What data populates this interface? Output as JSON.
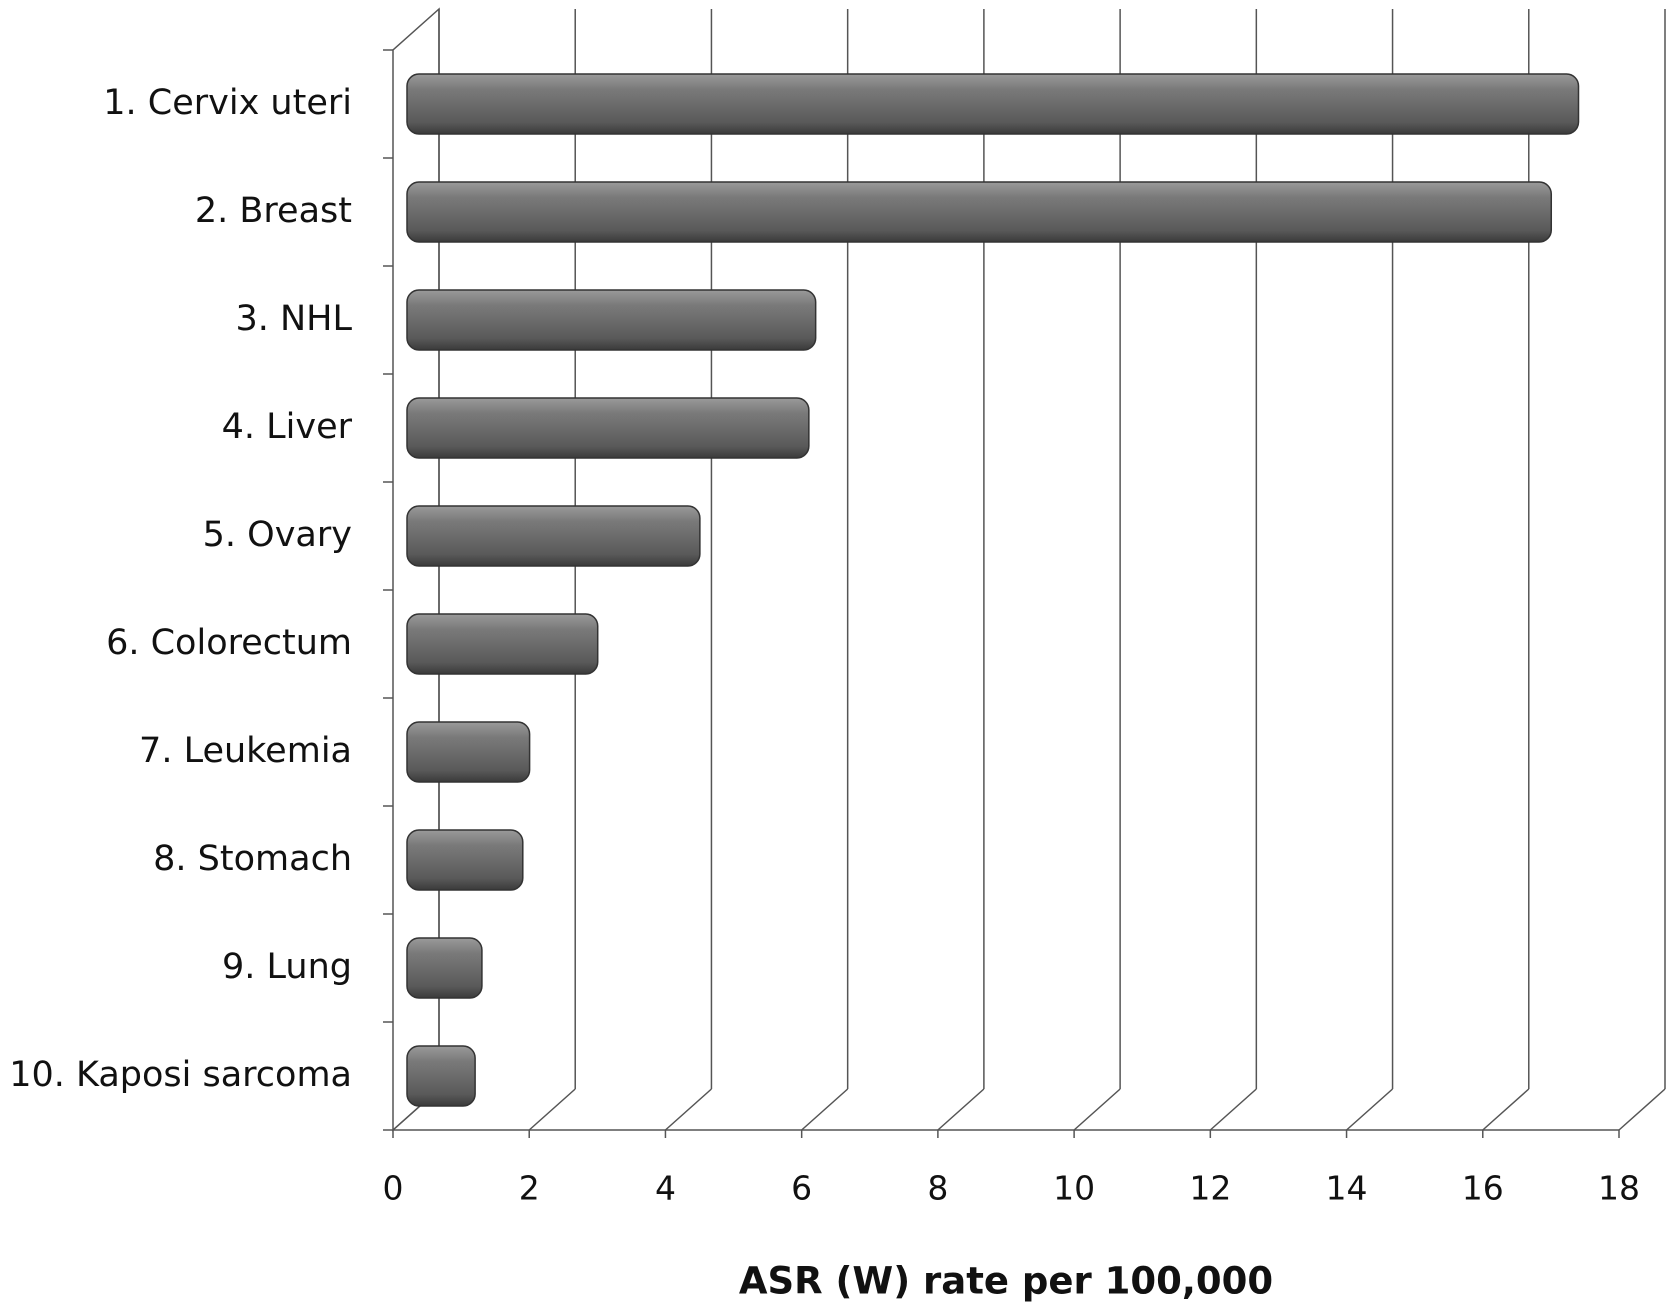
{
  "chart_data": {
    "type": "bar",
    "orientation": "horizontal",
    "x_label": "ASR (W) rate per 100,000",
    "categories": [
      "1. Cervix uteri",
      "2. Breast",
      "3. NHL",
      "4. Liver",
      "5. Ovary",
      "6. Colorectum",
      "7. Leukemia",
      "8. Stomach",
      "9. Lung",
      "10. Kaposi sarcoma"
    ],
    "values": [
      17.2,
      16.8,
      6.0,
      5.9,
      4.3,
      2.8,
      1.8,
      1.7,
      1.1,
      1.0
    ],
    "color": "#6b6b6b",
    "xlim": [
      0,
      18
    ],
    "xticks": [
      0,
      2,
      4,
      6,
      8,
      10,
      12,
      14,
      16,
      18
    ],
    "grid": true
  }
}
